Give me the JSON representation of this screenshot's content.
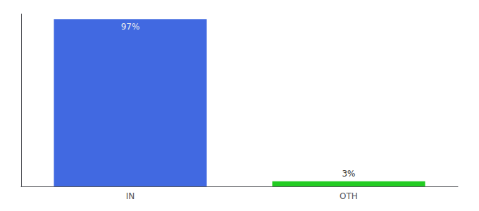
{
  "chart_data": {
    "type": "bar",
    "categories": [
      "IN",
      "OTH"
    ],
    "values": [
      97,
      3
    ],
    "value_labels": [
      "97%",
      "3%"
    ],
    "data_labels": true,
    "colors": [
      "#4169e1",
      "#22cc22"
    ],
    "ylim": [
      0,
      100
    ],
    "tick_labels": "x",
    "grid": false
  }
}
